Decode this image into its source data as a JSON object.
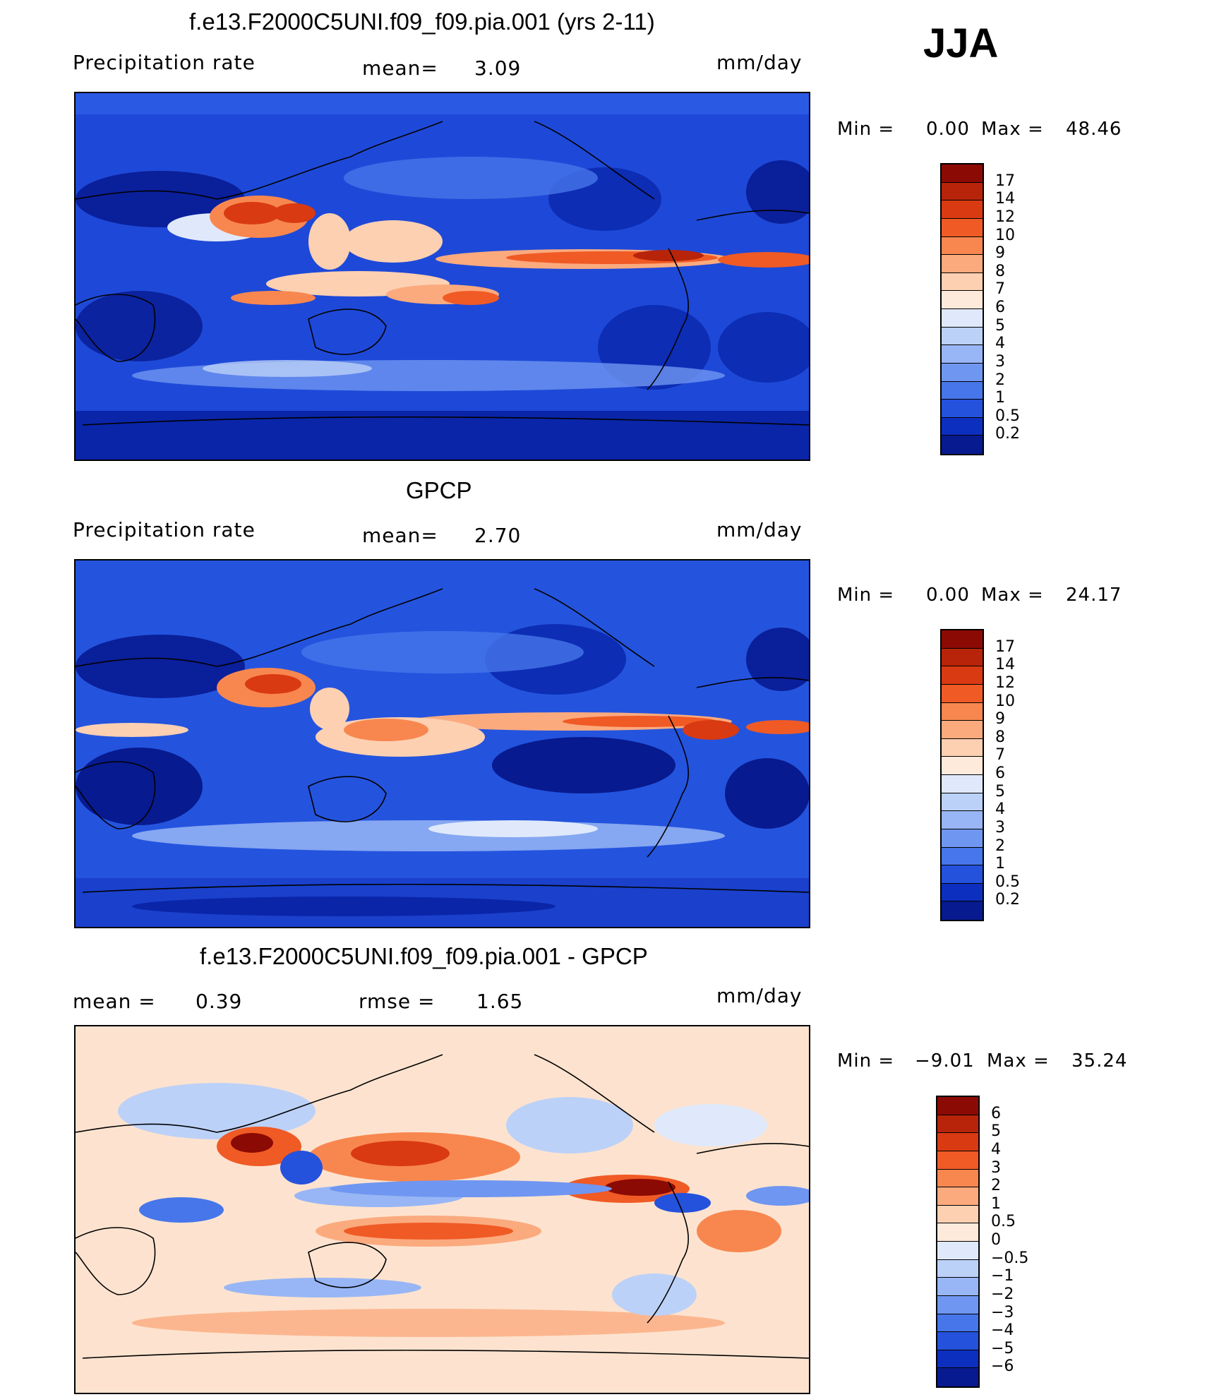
{
  "season": "JJA",
  "panels": [
    {
      "id": "model",
      "title": "f.e13.F2000C5UNI.f09_f09.pia.001 (yrs 2-11)",
      "left_label": "Precipitation  rate",
      "mid_label": "mean=",
      "mid_value": "3.09",
      "units": "mm/day",
      "min_max": {
        "min_label": "Min  =",
        "min": "0.00",
        "max_label": "Max  =",
        "max": "48.46"
      },
      "colorbar": {
        "levels": [
          "17",
          "14",
          "12",
          "10",
          "9",
          "8",
          "7",
          "6",
          "5",
          "4",
          "3",
          "2",
          "1",
          "0.5",
          "0.2"
        ],
        "colors": [
          "#8b0a04",
          "#b8240a",
          "#d93a12",
          "#f05a25",
          "#f8874f",
          "#fbaa7e",
          "#fdd0b2",
          "#fdeadb",
          "#dfe9fb",
          "#bcd1f8",
          "#98b6f5",
          "#6f96f1",
          "#4676ea",
          "#2452dc",
          "#0d2fbf",
          "#071a8f"
        ]
      },
      "map_colors": {
        "background": "#1e49d8"
      }
    },
    {
      "id": "obs",
      "title": "GPCP",
      "left_label": "Precipitation  rate",
      "mid_label": "mean=",
      "mid_value": "2.70",
      "units": "mm/day",
      "min_max": {
        "min_label": "Min  =",
        "min": "0.00",
        "max_label": "Max  =",
        "max": "24.17"
      },
      "colorbar": {
        "levels": [
          "17",
          "14",
          "12",
          "10",
          "9",
          "8",
          "7",
          "6",
          "5",
          "4",
          "3",
          "2",
          "1",
          "0.5",
          "0.2"
        ],
        "colors": [
          "#8b0a04",
          "#b8240a",
          "#d93a12",
          "#f05a25",
          "#f8874f",
          "#fbaa7e",
          "#fdd0b2",
          "#fdeadb",
          "#dfe9fb",
          "#bcd1f8",
          "#98b6f5",
          "#6f96f1",
          "#4676ea",
          "#2452dc",
          "#0d2fbf",
          "#071a8f"
        ]
      },
      "map_colors": {
        "background": "#2454de"
      }
    },
    {
      "id": "diff",
      "title": "f.e13.F2000C5UNI.f09_f09.pia.001 - GPCP",
      "left_label": "mean  =",
      "left_value": "0.39",
      "mid_label": "rmse  =",
      "mid_value": "1.65",
      "units": "mm/day",
      "min_max": {
        "min_label": "Min  =",
        "min": "−9.01",
        "max_label": "Max  =",
        "max": "35.24"
      },
      "colorbar": {
        "levels": [
          "6",
          "5",
          "4",
          "3",
          "2",
          "1",
          "0.5",
          "0",
          "−0.5",
          "−1",
          "−2",
          "−3",
          "−4",
          "−5",
          "−6"
        ],
        "colors": [
          "#8b0a04",
          "#b8240a",
          "#d93a12",
          "#f05a25",
          "#f8874f",
          "#fbaa7e",
          "#fdd0b2",
          "#fdeadb",
          "#dfe9fb",
          "#bcd1f8",
          "#98b6f5",
          "#6f96f1",
          "#4676ea",
          "#2452dc",
          "#0d2fbf",
          "#071a8f"
        ]
      },
      "map_colors": {
        "background": "#fde3cf"
      }
    }
  ]
}
